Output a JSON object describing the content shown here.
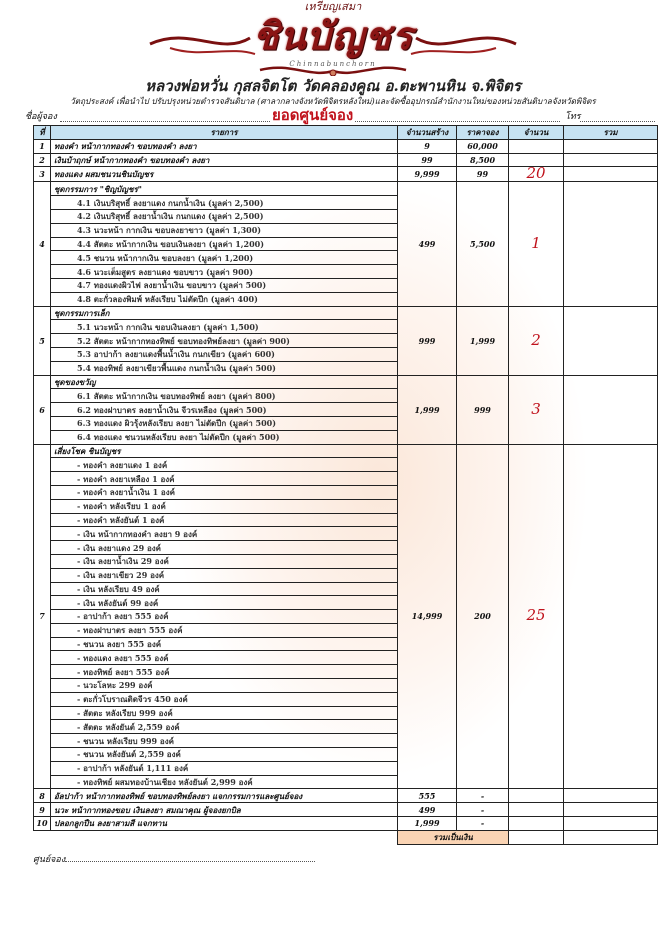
{
  "logo": {
    "top_text": "เหรียญเสมา",
    "main_text": "ชินบัญชร",
    "sub_text": "Chinnabunchorn",
    "primary_color": "#8a1414"
  },
  "temple_line": "หลวงพ่อหวั่น กุสลจิตโต วัดคลองคูณ อ.ตะพานหิน จ.พิจิตร",
  "purpose_line": "วัตถุประสงค์ เพื่อนำไป ปรับปรุงหน่วยตำรวจสันติบาล (ศาลากลางจังหวัดพิจิตรหลังใหม่)และจัดซื้ออุปกรณ์สำนักงานใหม่ของหน่วยสันติบาลจังหวัดพิจิตร",
  "booker_label": "ชื่อผู้จอง",
  "booker_value": "ยอดศูนย์จอง",
  "phone_label": "โทร",
  "table": {
    "headers": [
      "ที่",
      "รายการ",
      "จำนวนสร้าง",
      "ราคาจอง",
      "จำนวน",
      "รวม"
    ],
    "header_color": "#c6e2f2",
    "rows": [
      {
        "no": "1",
        "item": "ทองคำ หน้ากากทองคำ ขอบทองคำ ลงยา",
        "made": "9",
        "price": "60,000",
        "qty": "",
        "subs": []
      },
      {
        "no": "2",
        "item": "เงินบ้าฤกษ์ หน้ากากทองคำ ขอบทองคำ ลงยา",
        "made": "99",
        "price": "8,500",
        "qty": "",
        "subs": []
      },
      {
        "no": "3",
        "item": "ทองแดง ผสมชนวนชินบัญชร",
        "made": "9,999",
        "price": "99",
        "qty": "20",
        "subs": []
      },
      {
        "no": "4",
        "item": "ชุดกรรมการ \"ชิญบัญชร\"",
        "made": "499",
        "price": "5,500",
        "qty": "1",
        "subs": [
          "4.1 เงินบริสุทธิ์ ลงยาแดง กนกน้ำเงิน (มูลค่า 2,500)",
          "4.2 เงินบริสุทธิ์ ลงยาน้ำเงิน กนกแดง (มูลค่า 2,500)",
          "4.3 นวะหน้า กากเงิน ขอบลงยาขาว (มูลค่า 1,300)",
          "4.4 สัตตะ หน้ากากเงิน ขอบเงินลงยา (มูลค่า 1,200)",
          "4.5 ชนวน หน้ากากเงิน ขอบลงยา (มูลค่า 1,200)",
          "4.6 นวะเต็มสูตร ลงยาแดง ขอบขาว (มูลค่า 900)",
          "4.7 ทองแดงผิวไฟ ลงยาน้ำเงิน ขอบขาว (มูลค่า 500)",
          "4.8 ตะกั่วลองพิมพ์ หลังเรียบ ไม่ตัดปีก (มูลค่า 400)"
        ]
      },
      {
        "no": "5",
        "item": "ชุดกรรมการเล็ก",
        "made": "999",
        "price": "1,999",
        "qty": "2",
        "subs": [
          "5.1 นวะหน้า กากเงิน ขอบเงินลงยา (มูลค่า 1,500)",
          "5.2 สัตตะ หน้ากากทองทิพย์ ขอบทองทิพย์ลงยา (มูลค่า 900)",
          "5.3 อาปาก้า ลงยาแดงพื้นน้ำเงิน กนกเขียว (มูลค่า 600)",
          "5.4 ทองทิพย์ ลงยาเขียวพื้นแดง กนกน้ำเงิน (มูลค่า 500)"
        ]
      },
      {
        "no": "6",
        "item": "ชุดของขวัญ",
        "made": "1,999",
        "price": "999",
        "qty": "3",
        "subs": [
          "6.1 สัตตะ หน้ากากเงิน ขอบทองทิพย์ ลงยา (มูลค่า 800)",
          "6.2 ทองฝาบาตร ลงยาน้ำเงิน จีวรเหลือง (มูลค่า 500)",
          "6.3 ทองแดง ผิวรุ้งหลังเรียบ ลงยา ไม่ตัดปีก (มูลค่า 500)",
          "6.4 ทองแดง ชนวนหลังเรียบ ลงยา ไม่ตัดปีก (มูลค่า 500)"
        ]
      },
      {
        "no": "7",
        "item": "เสี่ยงโชค ชินบัญชร",
        "made": "14,999",
        "price": "200",
        "qty": "25",
        "subs": [
          "- ทองคำ ลงยาแดง 1 องค์",
          "- ทองคำ ลงยาเหลือง 1 องค์",
          "- ทองคำ ลงยาน้ำเงิน 1 องค์",
          "- ทองคำ หลังเรียบ 1 องค์",
          "- ทองคำ หลังยันต์ 1 องค์",
          "- เงิน หน้ากากทองคำ ลงยา 9 องค์",
          "- เงิน ลงยาแดง 29 องค์",
          "- เงิน ลงยาน้ำเงิน 29 องค์",
          "- เงิน ลงยาเขียว 29 องค์",
          "- เงิน หลังเรียบ 49 องค์",
          "- เงิน หลังยันต์ 99 องค์",
          "- อาปาก้า ลงยา 555 องค์",
          "- ทองฝาบาตร ลงยา 555 องค์",
          "- ชนวน ลงยา 555 องค์",
          "- ทองแดง ลงยา 555 องค์",
          "- ทองทิพย์ ลงยา 555 องค์",
          "- นวะโลหะ 299 องค์",
          "- ตะกั่วโบราณติดจีวร 450 องค์",
          "- สัตตะ หลังเรียบ 999 องค์",
          "- สัตตะ หลังยันต์ 2,559 องค์",
          "- ชนวน หลังเรียบ 999 องค์",
          "- ชนวน หลังยันต์ 2,559 องค์",
          "- อาปาก้า หลังยันต์ 1,111 องค์",
          "- ทองทิพย์ ผสมทองบ้านเชียง หลังยันต์ 2,999 องค์"
        ]
      },
      {
        "no": "8",
        "item": "อัลปาก้า หน้ากากทองทิพย์ ขอบทองทิพย์ลงยา แจกกรรมการและศูนย์จอง",
        "made": "555",
        "price": "-",
        "qty": "",
        "subs": []
      },
      {
        "no": "9",
        "item": "นวะ หน้ากากทองขอบ เงินลงยา สมณาคุณ ผู้จองยกบิล",
        "made": "499",
        "price": "-",
        "qty": "",
        "subs": []
      },
      {
        "no": "10",
        "item": "ปลอกลูกปืน ลงยาสามสี แจกทาน",
        "made": "1,999",
        "price": "-",
        "qty": "",
        "subs": []
      }
    ],
    "total_label": "รวมเป็นเงิน",
    "total_color": "#fad4b4",
    "qty_color": "#c0121c"
  },
  "center_label": "ศูนย์จอง"
}
